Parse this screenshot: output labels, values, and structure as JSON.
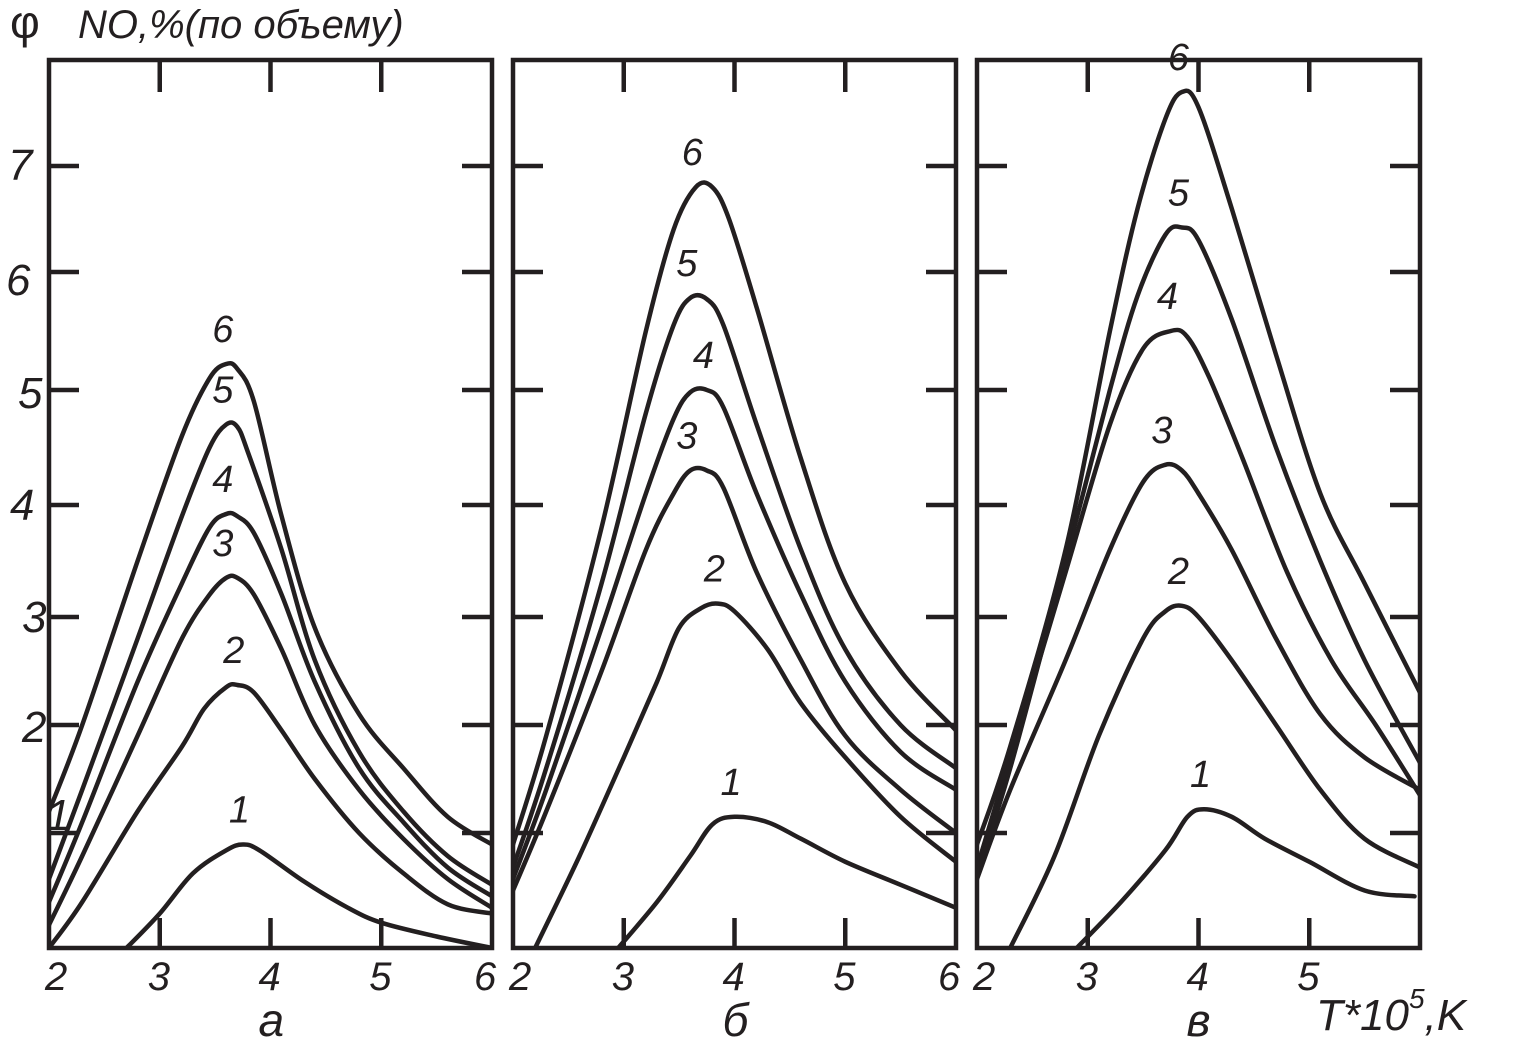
{
  "labels": {
    "phi": "φ",
    "ylabel": "NO,%(по объему)",
    "xlabel_base": "T*10",
    "xlabel_exp": "5",
    "xlabel_unit": ",K"
  },
  "y_ticks": [
    "1",
    "2",
    "3",
    "4",
    "5",
    "6",
    "7"
  ],
  "chart_data": [
    {
      "type": "line",
      "panel_label": "а",
      "xlim": [
        2,
        6
      ],
      "ylim": [
        0,
        7.8
      ],
      "x_ticks": [
        "2",
        "3",
        "4",
        "5",
        "6"
      ],
      "series": [
        {
          "name": "1",
          "points": [
            [
              2.7,
              0.0
            ],
            [
              3.0,
              0.3
            ],
            [
              3.3,
              0.65
            ],
            [
              3.6,
              0.85
            ],
            [
              3.75,
              0.9
            ],
            [
              3.9,
              0.85
            ],
            [
              4.3,
              0.58
            ],
            [
              4.7,
              0.35
            ],
            [
              5.0,
              0.22
            ],
            [
              5.5,
              0.1
            ],
            [
              6.0,
              0.0
            ]
          ]
        },
        {
          "name": "2",
          "points": [
            [
              2.0,
              0.0
            ],
            [
              2.3,
              0.4
            ],
            [
              2.8,
              1.2
            ],
            [
              3.2,
              1.8
            ],
            [
              3.4,
              2.15
            ],
            [
              3.6,
              2.35
            ],
            [
              3.7,
              2.37
            ],
            [
              3.85,
              2.3
            ],
            [
              4.1,
              1.95
            ],
            [
              4.4,
              1.5
            ],
            [
              4.8,
              1.0
            ],
            [
              5.2,
              0.65
            ],
            [
              5.6,
              0.38
            ],
            [
              6.0,
              0.3
            ]
          ]
        },
        {
          "name": "3",
          "points": [
            [
              2.0,
              0.2
            ],
            [
              2.3,
              0.8
            ],
            [
              2.8,
              1.9
            ],
            [
              3.2,
              2.8
            ],
            [
              3.45,
              3.2
            ],
            [
              3.6,
              3.35
            ],
            [
              3.7,
              3.35
            ],
            [
              3.85,
              3.2
            ],
            [
              4.1,
              2.7
            ],
            [
              4.4,
              2.0
            ],
            [
              4.8,
              1.4
            ],
            [
              5.2,
              0.95
            ],
            [
              5.6,
              0.6
            ],
            [
              6.0,
              0.35
            ]
          ]
        },
        {
          "name": "4",
          "points": [
            [
              2.0,
              0.4
            ],
            [
              2.3,
              1.1
            ],
            [
              2.8,
              2.4
            ],
            [
              3.2,
              3.3
            ],
            [
              3.45,
              3.8
            ],
            [
              3.6,
              3.92
            ],
            [
              3.7,
              3.9
            ],
            [
              3.85,
              3.75
            ],
            [
              4.1,
              3.2
            ],
            [
              4.4,
              2.4
            ],
            [
              4.8,
              1.6
            ],
            [
              5.2,
              1.1
            ],
            [
              5.6,
              0.7
            ],
            [
              6.0,
              0.45
            ]
          ]
        },
        {
          "name": "5",
          "points": [
            [
              2.0,
              0.6
            ],
            [
              2.3,
              1.4
            ],
            [
              2.8,
              2.8
            ],
            [
              3.2,
              3.9
            ],
            [
              3.45,
              4.5
            ],
            [
              3.6,
              4.7
            ],
            [
              3.7,
              4.68
            ],
            [
              3.8,
              4.45
            ],
            [
              4.1,
              3.6
            ],
            [
              4.4,
              2.6
            ],
            [
              4.8,
              1.75
            ],
            [
              5.2,
              1.2
            ],
            [
              5.6,
              0.8
            ],
            [
              6.0,
              0.55
            ]
          ]
        },
        {
          "name": "6",
          "points": [
            [
              2.0,
              1.2
            ],
            [
              2.3,
              2.0
            ],
            [
              2.8,
              3.5
            ],
            [
              3.2,
              4.6
            ],
            [
              3.45,
              5.1
            ],
            [
              3.6,
              5.22
            ],
            [
              3.7,
              5.18
            ],
            [
              3.85,
              4.9
            ],
            [
              4.1,
              3.9
            ],
            [
              4.4,
              2.9
            ],
            [
              4.8,
              2.1
            ],
            [
              5.2,
              1.6
            ],
            [
              5.6,
              1.15
            ],
            [
              6.0,
              0.9
            ]
          ]
        }
      ]
    },
    {
      "type": "line",
      "panel_label": "б",
      "xlim": [
        2,
        6
      ],
      "ylim": [
        0,
        7.8
      ],
      "x_ticks": [
        "2",
        "3",
        "4",
        "5",
        "6"
      ],
      "series": [
        {
          "name": "1",
          "points": [
            [
              2.95,
              0.0
            ],
            [
              3.3,
              0.4
            ],
            [
              3.6,
              0.8
            ],
            [
              3.8,
              1.08
            ],
            [
              4.0,
              1.15
            ],
            [
              4.3,
              1.1
            ],
            [
              4.6,
              0.95
            ],
            [
              5.0,
              0.75
            ],
            [
              5.5,
              0.55
            ],
            [
              6.0,
              0.35
            ]
          ]
        },
        {
          "name": "2",
          "points": [
            [
              2.2,
              0.0
            ],
            [
              2.6,
              0.8
            ],
            [
              3.0,
              1.7
            ],
            [
              3.3,
              2.4
            ],
            [
              3.5,
              2.9
            ],
            [
              3.7,
              3.08
            ],
            [
              3.85,
              3.12
            ],
            [
              4.0,
              3.05
            ],
            [
              4.3,
              2.7
            ],
            [
              4.6,
              2.2
            ],
            [
              5.0,
              1.7
            ],
            [
              5.5,
              1.15
            ],
            [
              6.0,
              0.75
            ]
          ]
        },
        {
          "name": "3",
          "points": [
            [
              2.0,
              0.5
            ],
            [
              2.3,
              1.2
            ],
            [
              2.8,
              2.5
            ],
            [
              3.2,
              3.6
            ],
            [
              3.45,
              4.1
            ],
            [
              3.6,
              4.3
            ],
            [
              3.75,
              4.3
            ],
            [
              3.9,
              4.15
            ],
            [
              4.2,
              3.4
            ],
            [
              4.6,
              2.6
            ],
            [
              5.0,
              1.9
            ],
            [
              5.5,
              1.4
            ],
            [
              6.0,
              1.0
            ]
          ]
        },
        {
          "name": "4",
          "points": [
            [
              2.0,
              0.6
            ],
            [
              2.3,
              1.4
            ],
            [
              2.8,
              2.9
            ],
            [
              3.2,
              4.1
            ],
            [
              3.45,
              4.75
            ],
            [
              3.6,
              4.98
            ],
            [
              3.75,
              5.0
            ],
            [
              3.9,
              4.85
            ],
            [
              4.2,
              4.1
            ],
            [
              4.6,
              3.2
            ],
            [
              5.0,
              2.4
            ],
            [
              5.5,
              1.75
            ],
            [
              6.0,
              1.4
            ]
          ]
        },
        {
          "name": "5",
          "points": [
            [
              2.0,
              0.7
            ],
            [
              2.3,
              1.6
            ],
            [
              2.8,
              3.3
            ],
            [
              3.2,
              4.8
            ],
            [
              3.45,
              5.55
            ],
            [
              3.6,
              5.78
            ],
            [
              3.75,
              5.77
            ],
            [
              3.9,
              5.55
            ],
            [
              4.2,
              4.7
            ],
            [
              4.6,
              3.6
            ],
            [
              5.0,
              2.7
            ],
            [
              5.5,
              2.0
            ],
            [
              6.0,
              1.6
            ]
          ]
        },
        {
          "name": "6",
          "points": [
            [
              2.0,
              0.9
            ],
            [
              2.3,
              1.9
            ],
            [
              2.8,
              3.8
            ],
            [
              3.2,
              5.5
            ],
            [
              3.45,
              6.4
            ],
            [
              3.65,
              6.8
            ],
            [
              3.8,
              6.8
            ],
            [
              3.95,
              6.5
            ],
            [
              4.2,
              5.7
            ],
            [
              4.6,
              4.4
            ],
            [
              5.0,
              3.3
            ],
            [
              5.5,
              2.5
            ],
            [
              6.0,
              1.95
            ]
          ]
        }
      ]
    },
    {
      "type": "line",
      "panel_label": "в",
      "xlim": [
        2,
        6
      ],
      "ylim": [
        0,
        7.8
      ],
      "x_ticks": [
        "2",
        "3",
        "4",
        "5"
      ],
      "series": [
        {
          "name": "1",
          "points": [
            [
              2.9,
              0.0
            ],
            [
              3.3,
              0.4
            ],
            [
              3.7,
              0.85
            ],
            [
              3.9,
              1.15
            ],
            [
              4.05,
              1.22
            ],
            [
              4.3,
              1.15
            ],
            [
              4.6,
              0.95
            ],
            [
              5.0,
              0.75
            ],
            [
              5.5,
              0.5
            ],
            [
              5.95,
              0.45
            ]
          ]
        },
        {
          "name": "2",
          "points": [
            [
              2.3,
              0.0
            ],
            [
              2.7,
              0.8
            ],
            [
              3.1,
              1.9
            ],
            [
              3.5,
              2.8
            ],
            [
              3.7,
              3.05
            ],
            [
              3.85,
              3.1
            ],
            [
              4.0,
              3.0
            ],
            [
              4.3,
              2.6
            ],
            [
              4.7,
              2.0
            ],
            [
              5.1,
              1.4
            ],
            [
              5.5,
              0.95
            ],
            [
              6.0,
              0.7
            ]
          ]
        },
        {
          "name": "3",
          "points": [
            [
              2.0,
              0.6
            ],
            [
              2.3,
              1.4
            ],
            [
              2.8,
              2.6
            ],
            [
              3.2,
              3.6
            ],
            [
              3.5,
              4.2
            ],
            [
              3.7,
              4.35
            ],
            [
              3.85,
              4.3
            ],
            [
              4.0,
              4.1
            ],
            [
              4.3,
              3.6
            ],
            [
              4.7,
              2.8
            ],
            [
              5.1,
              2.1
            ],
            [
              5.5,
              1.7
            ],
            [
              6.0,
              1.4
            ]
          ]
        },
        {
          "name": "4",
          "points": [
            [
              2.0,
              0.7
            ],
            [
              2.3,
              1.7
            ],
            [
              2.8,
              3.4
            ],
            [
              3.2,
              4.7
            ],
            [
              3.5,
              5.35
            ],
            [
              3.75,
              5.5
            ],
            [
              3.9,
              5.45
            ],
            [
              4.1,
              5.1
            ],
            [
              4.4,
              4.4
            ],
            [
              4.8,
              3.4
            ],
            [
              5.2,
              2.6
            ],
            [
              5.6,
              2.0
            ],
            [
              6.0,
              1.35
            ]
          ]
        },
        {
          "name": "5",
          "points": [
            [
              2.0,
              0.65
            ],
            [
              2.3,
              1.6
            ],
            [
              2.8,
              3.5
            ],
            [
              3.2,
              5.0
            ],
            [
              3.45,
              5.8
            ],
            [
              3.7,
              6.35
            ],
            [
              3.85,
              6.42
            ],
            [
              4.0,
              6.3
            ],
            [
              4.3,
              5.6
            ],
            [
              4.7,
              4.5
            ],
            [
              5.1,
              3.5
            ],
            [
              5.5,
              2.6
            ],
            [
              6.0,
              1.65
            ]
          ]
        },
        {
          "name": "6",
          "points": [
            [
              2.0,
              0.9
            ],
            [
              2.3,
              1.8
            ],
            [
              2.8,
              3.6
            ],
            [
              3.2,
              5.5
            ],
            [
              3.45,
              6.6
            ],
            [
              3.7,
              7.4
            ],
            [
              3.85,
              7.63
            ],
            [
              4.0,
              7.5
            ],
            [
              4.3,
              6.6
            ],
            [
              4.7,
              5.3
            ],
            [
              5.1,
              4.1
            ],
            [
              5.5,
              3.3
            ],
            [
              6.0,
              2.3
            ]
          ]
        }
      ]
    }
  ]
}
